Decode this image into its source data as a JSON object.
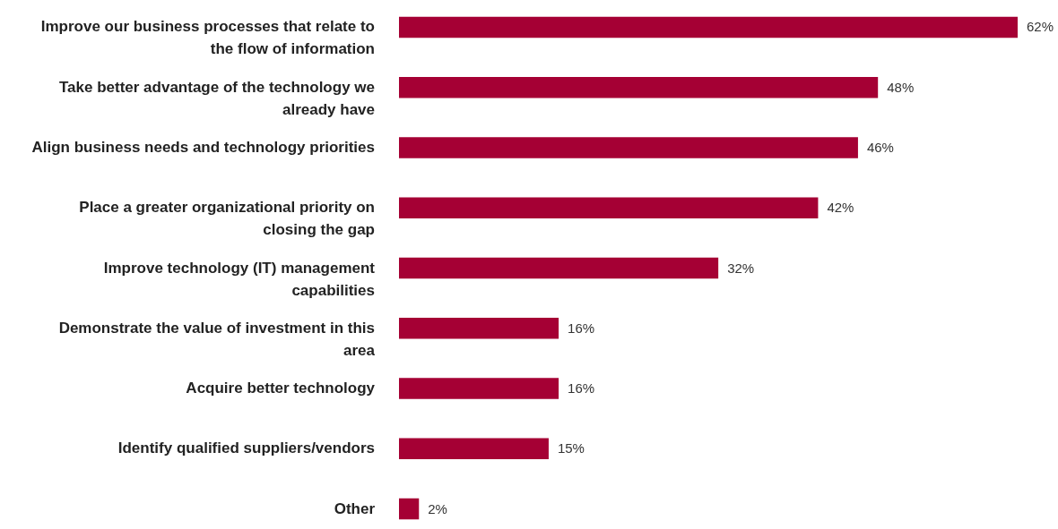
{
  "chart_data": {
    "type": "bar",
    "orientation": "horizontal",
    "categories": [
      "Improve our business processes that relate to the flow of information",
      "Take better advantage of the technology we already have",
      "Align business needs and technology priorities",
      "Place a greater organizational priority on closing the gap",
      "Improve technology (IT) management capabilities",
      "Demonstrate the value of investment in this area",
      "Acquire better technology",
      "Identify qualified suppliers/vendors",
      "Other"
    ],
    "values": [
      62,
      48,
      46,
      42,
      32,
      16,
      16,
      15,
      2
    ],
    "value_labels": [
      "62%",
      "48%",
      "46%",
      "42%",
      "32%",
      "16%",
      "16%",
      "15%",
      "2%"
    ],
    "color": "#a50034"
  }
}
